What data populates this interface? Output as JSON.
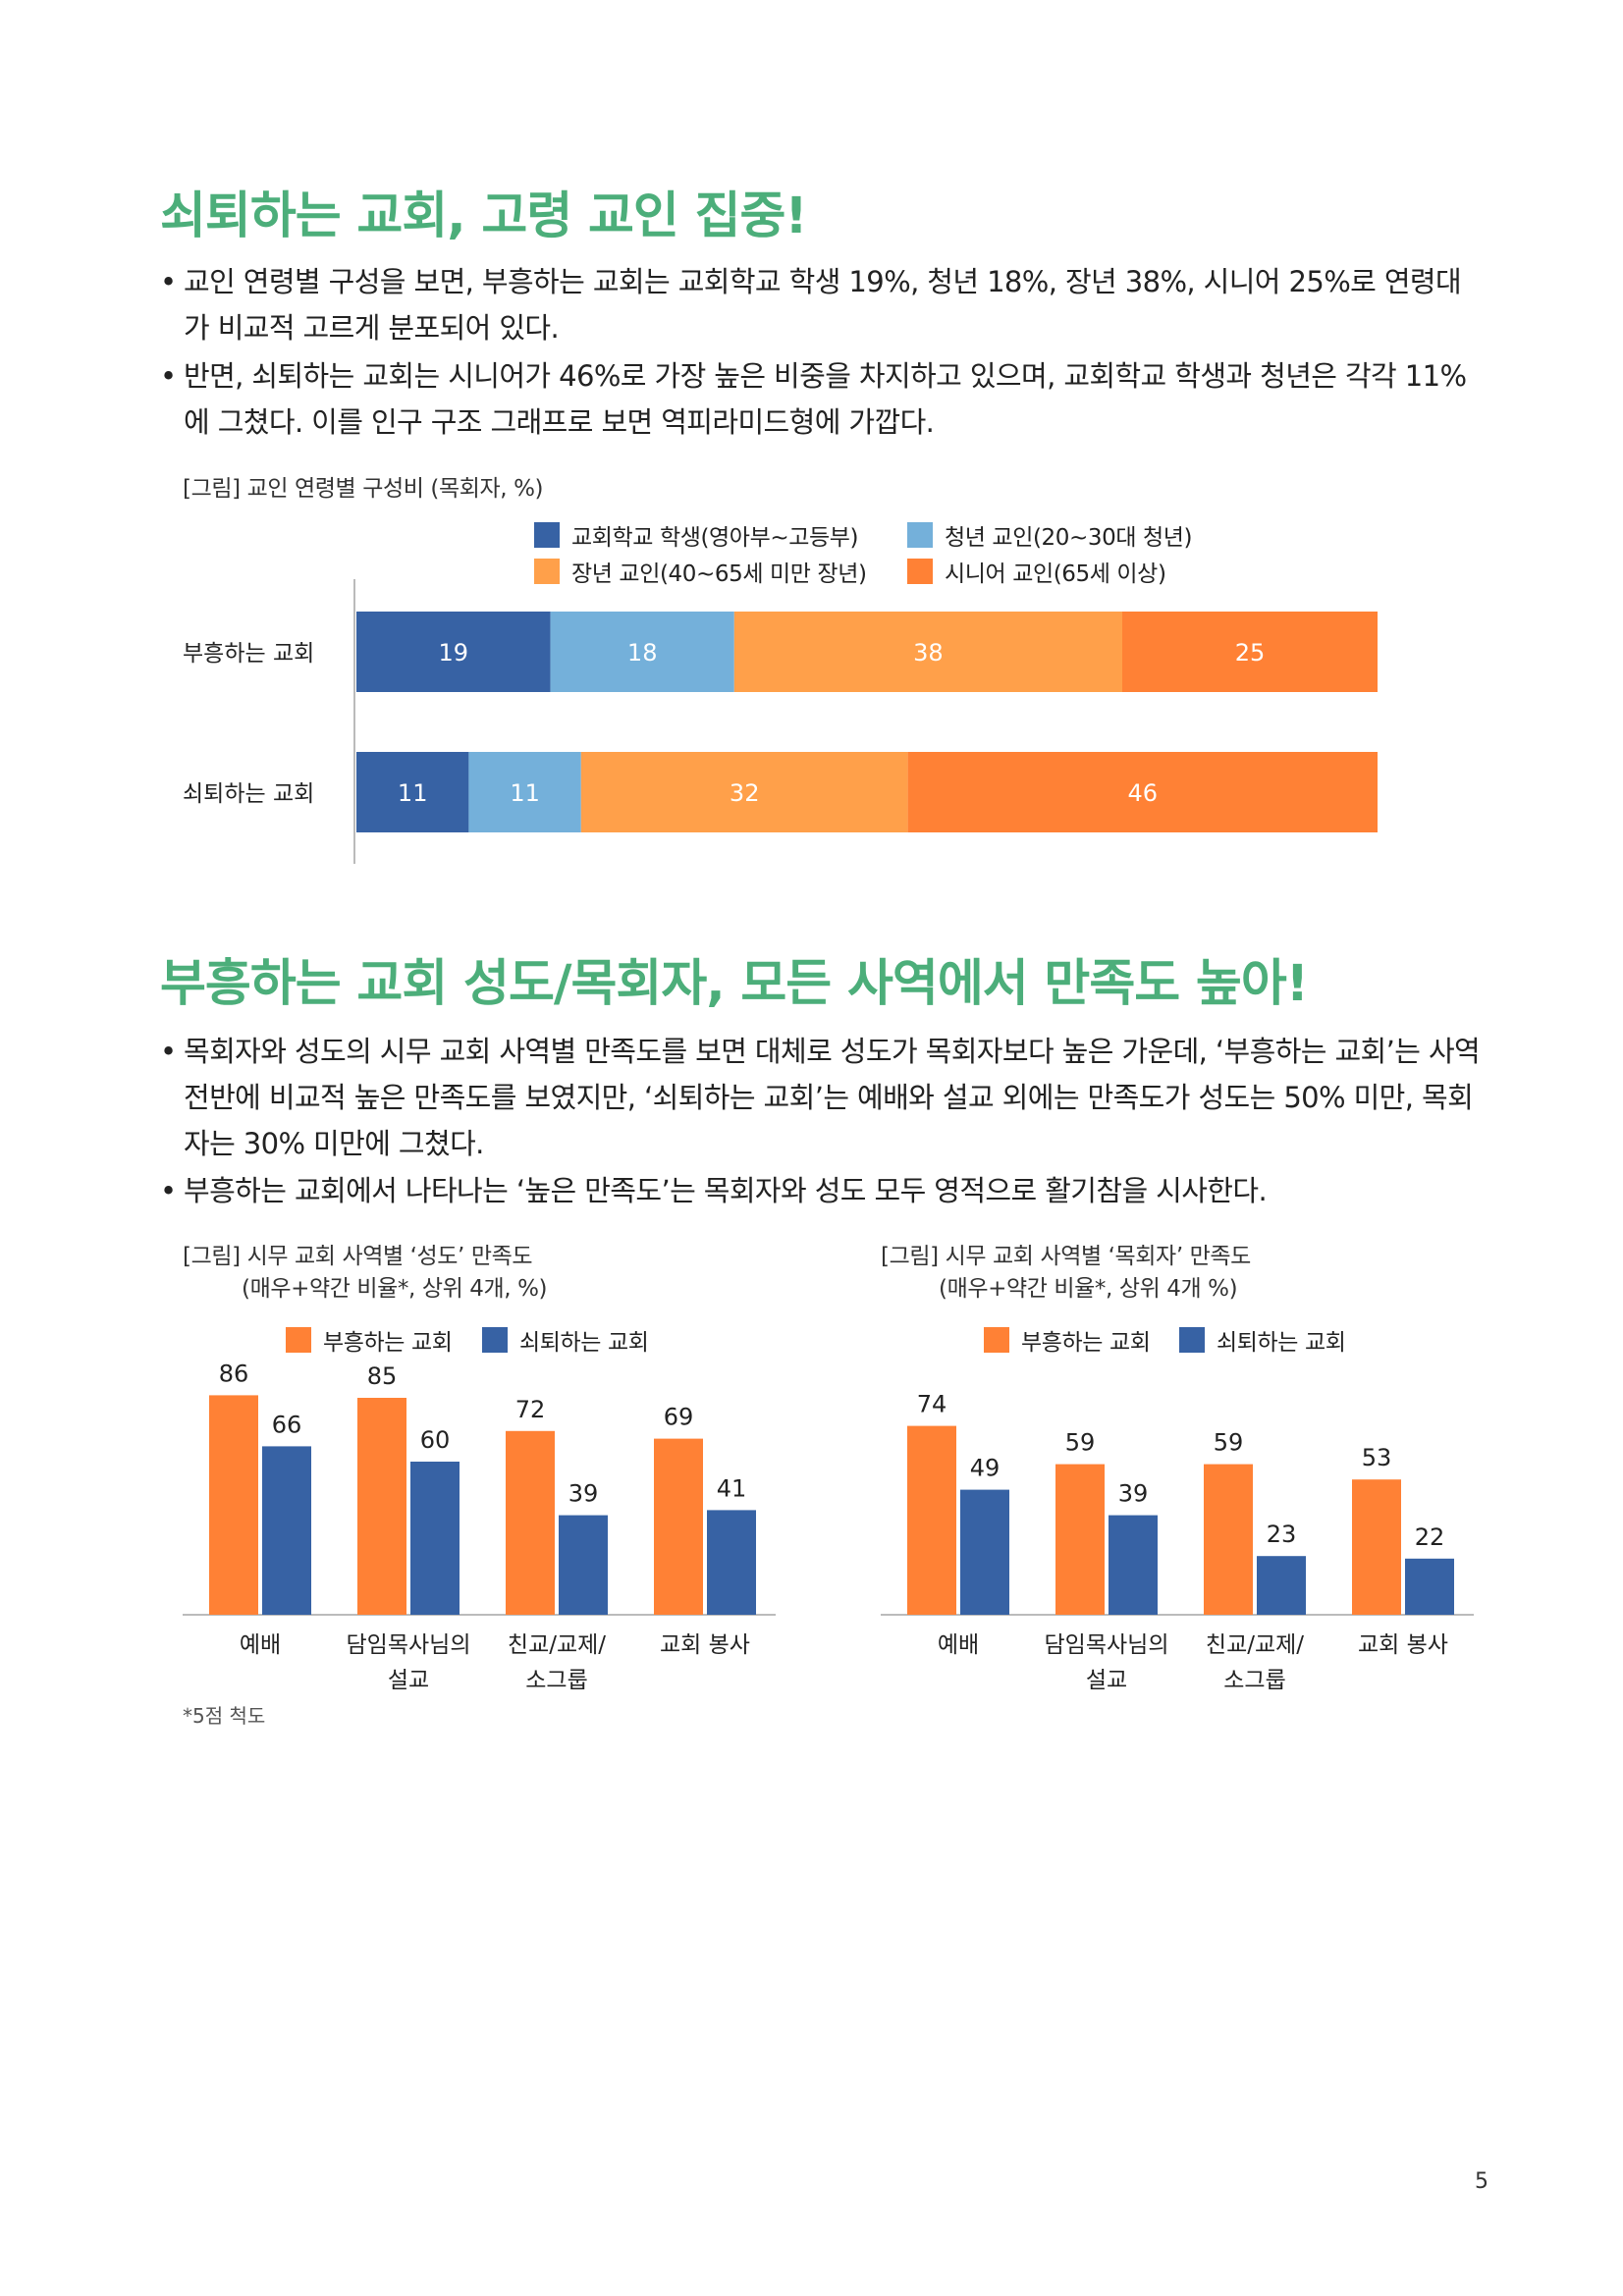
{
  "section1": {
    "heading": "쇠퇴하는 교회, 고령 교인 집중!",
    "bullets": [
      "교인 연령별 구성을 보면, 부흥하는 교회는 교회학교 학생 19%, 청년 18%, 장년 38%, 시니어 25%로 연령대가 비교적 고르게 분포되어 있다.",
      "반면, 쇠퇴하는 교회는 시니어가 46%로 가장 높은 비중을 차지하고 있으며, 교회학교 학생과 청년은 각각 11%에 그쳤다. 이를 인구 구조 그래프로 보면 역피라미드형에 가깝다."
    ],
    "caption": "[그림] 교인 연령별 구성비 (목회자, %)"
  },
  "section2": {
    "heading": "부흥하는 교회 성도/목회자, 모든 사역에서 만족도 높아!",
    "bullets": [
      "목회자와 성도의 시무 교회 사역별 만족도를 보면 대체로 성도가 목회자보다 높은 가운데, ‘부흥하는 교회’는 사역 전반에 비교적 높은 만족도를 보였지만, ‘쇠퇴하는 교회’는 예배와 설교 외에는 만족도가 성도는 50% 미만, 목회자는 30% 미만에 그쳤다.",
      "부흥하는 교회에서 나타나는 ‘높은 만족도’는 목회자와 성도 모두 영적으로 활기참을 시사한다."
    ],
    "caption_left_1": "[그림] 시무 교회 사역별 ‘성도’ 만족도",
    "caption_left_2": "(매우+약간 비율*, 상위 4개, %)",
    "caption_right_1": "[그림] 시무 교회 사역별 ‘목회자’ 만족도",
    "caption_right_2": "(매우+약간 비율*, 상위 4개 %)",
    "footnote": "*5점 척도"
  },
  "page_number": "5",
  "colors": {
    "heading_green": "#4cae7a",
    "dark_blue": "#3762a4",
    "light_blue": "#74b0da",
    "light_orange": "#ffa04a",
    "orange": "#ff8135"
  },
  "chart_data": [
    {
      "type": "bar",
      "orientation": "horizontal-stacked",
      "categories": [
        "부흥하는 교회",
        "쇠퇴하는 교회"
      ],
      "series": [
        {
          "name": "교회학교 학생(영아부~고등부)",
          "values": [
            19,
            11
          ],
          "color": "#3762a4"
        },
        {
          "name": "청년 교인(20~30대 청년)",
          "values": [
            18,
            11
          ],
          "color": "#74b0da"
        },
        {
          "name": "장년 교인(40~65세 미만 장년)",
          "values": [
            38,
            32
          ],
          "color": "#ffa04a"
        },
        {
          "name": "시니어 교인(65세 이상)",
          "values": [
            25,
            46
          ],
          "color": "#ff8135"
        }
      ],
      "xlim": [
        0,
        100
      ],
      "legend": "top"
    },
    {
      "type": "bar",
      "categories": [
        "예배",
        "담임목사님의\n설교",
        "친교/교제/\n소그룹",
        "교회 봉사"
      ],
      "series": [
        {
          "name": "부흥하는 교회",
          "values": [
            86,
            85,
            72,
            69
          ],
          "color": "#ff8135"
        },
        {
          "name": "쇠퇴하는 교회",
          "values": [
            66,
            60,
            39,
            41
          ],
          "color": "#3762a4"
        }
      ],
      "ylim": [
        0,
        100
      ],
      "legend": "top"
    },
    {
      "type": "bar",
      "categories": [
        "예배",
        "담임목사님의\n설교",
        "친교/교제/\n소그룹",
        "교회 봉사"
      ],
      "series": [
        {
          "name": "부흥하는 교회",
          "values": [
            74,
            59,
            59,
            53
          ],
          "color": "#ff8135"
        },
        {
          "name": "쇠퇴하는 교회",
          "values": [
            49,
            39,
            23,
            22
          ],
          "color": "#3762a4"
        }
      ],
      "ylim": [
        0,
        100
      ],
      "legend": "top"
    }
  ]
}
